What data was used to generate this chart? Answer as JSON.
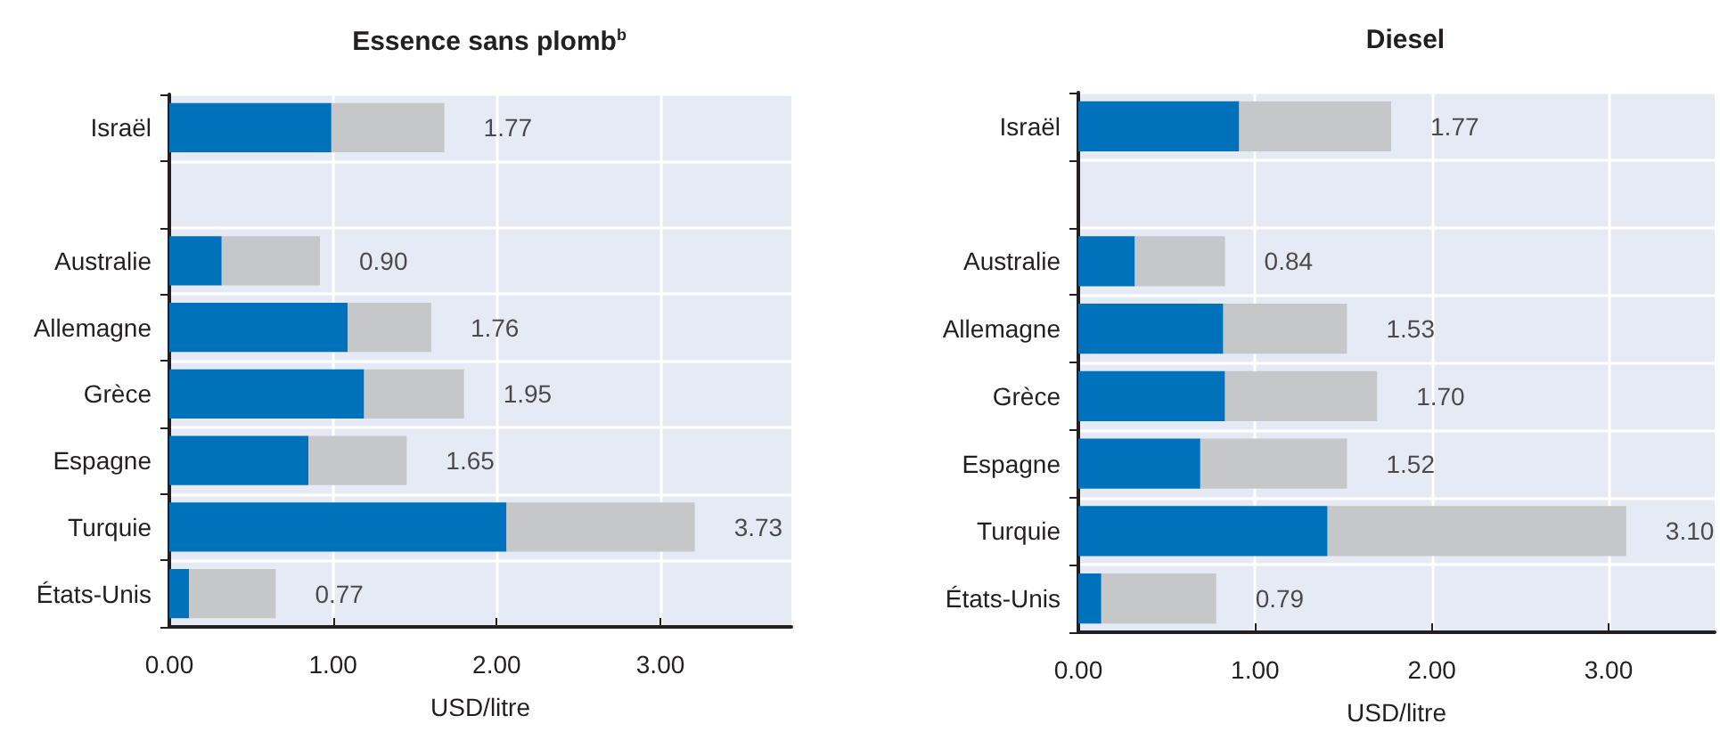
{
  "chart_data": [
    {
      "type": "bar",
      "orientation": "horizontal",
      "stacked": true,
      "title": "Essence sans plomb$^{b}$",
      "xlabel": "USD/litre",
      "categories": [
        "Israël",
        null,
        "Australie",
        "Allemagne",
        "Grèce",
        "Espagne",
        "Turquie",
        "États-Unis"
      ],
      "series": [
        {
          "color": "#0071bb",
          "values": [
            0.99,
            null,
            0.32,
            1.09,
            1.19,
            0.85,
            2.06,
            0.12
          ]
        },
        {
          "color": "#c6c7c8",
          "values": [
            0.69,
            null,
            0.6,
            0.51,
            0.61,
            0.6,
            1.15,
            0.53
          ]
        }
      ],
      "annotations": [
        {
          "text": "1.77",
          "x": 1.68,
          "y": "Israël"
        },
        {
          "text": "0.90",
          "x": 0.92,
          "y": "Australie"
        },
        {
          "text": "1.76",
          "x": 1.6,
          "y": "Allemagne"
        },
        {
          "text": "1.95",
          "x": 1.8,
          "y": "Grèce"
        },
        {
          "text": "1.65",
          "x": 1.45,
          "y": "Espagne"
        },
        {
          "text": "3.73",
          "x": 3.21,
          "y": "Turquie"
        },
        {
          "text": "0.77",
          "x": 0.65,
          "y": "États-Unis"
        }
      ],
      "xlim": [
        0,
        3.8
      ],
      "xticks": [
        {
          "value": 0,
          "label": "0.00"
        },
        {
          "value": 1,
          "label": "1.00"
        },
        {
          "value": 2,
          "label": "2.00"
        },
        {
          "value": 3,
          "label": "3.00"
        }
      ],
      "grid": true
    },
    {
      "type": "bar",
      "orientation": "horizontal",
      "stacked": true,
      "title": "Diesel",
      "xlabel": "USD/litre",
      "categories": [
        "Israël",
        null,
        "Australie",
        "Allemagne",
        "Grèce",
        "Espagne",
        "Turquie",
        "États-Unis"
      ],
      "series": [
        {
          "color": "#0071bb",
          "values": [
            0.91,
            null,
            0.32,
            0.82,
            0.83,
            0.69,
            1.41,
            0.13
          ]
        },
        {
          "color": "#c6c7c8",
          "values": [
            0.86,
            null,
            0.51,
            0.7,
            0.86,
            0.83,
            1.69,
            0.65
          ]
        }
      ],
      "annotations": [
        {
          "text": "1.77",
          "x": 1.77,
          "y": "Israël"
        },
        {
          "text": "0.84",
          "x": 0.83,
          "y": "Australie"
        },
        {
          "text": "1.53",
          "x": 1.52,
          "y": "Allemagne"
        },
        {
          "text": "1.70",
          "x": 1.69,
          "y": "Grèce"
        },
        {
          "text": "1.52",
          "x": 1.52,
          "y": "Espagne"
        },
        {
          "text": "3.10",
          "x": 3.1,
          "y": "Turquie"
        },
        {
          "text": "0.79",
          "x": 0.78,
          "y": "États-Unis"
        }
      ],
      "xlim": [
        0,
        3.6
      ],
      "xticks": [
        {
          "value": 0,
          "label": "0.00"
        },
        {
          "value": 1,
          "label": "1.00"
        },
        {
          "value": 2,
          "label": "2.00"
        },
        {
          "value": 3,
          "label": "3.00"
        }
      ],
      "grid": true
    }
  ]
}
